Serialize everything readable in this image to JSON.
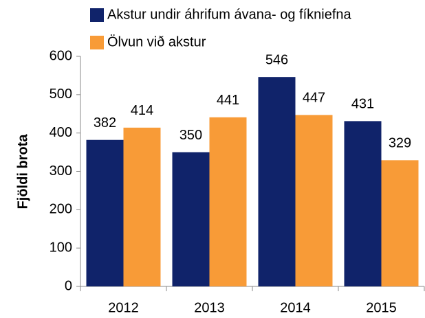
{
  "chart_data": {
    "type": "bar",
    "categories": [
      "2012",
      "2013",
      "2014",
      "2015"
    ],
    "series": [
      {
        "name": "Akstur undir áhrifum ávana- og fíkniefna",
        "color": "#10236a",
        "values": [
          382,
          350,
          546,
          431
        ]
      },
      {
        "name": "Ölvun við akstur",
        "color": "#f89b37",
        "values": [
          414,
          441,
          447,
          329
        ]
      }
    ],
    "y_label": "Fjöldi brota",
    "ylim": [
      0,
      600
    ],
    "yticks": [
      0,
      100,
      200,
      300,
      400,
      500,
      600
    ]
  }
}
